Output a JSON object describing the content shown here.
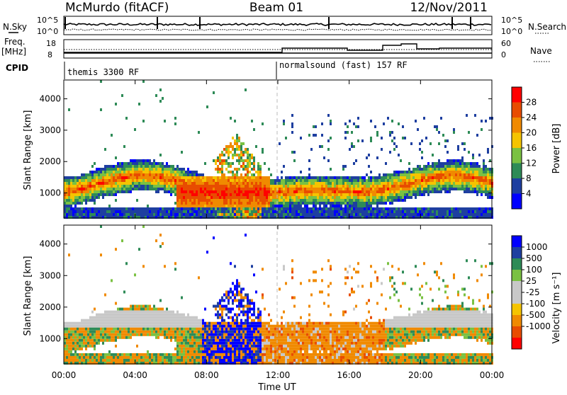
{
  "header": {
    "station": "McMurdo (fitACF)",
    "beam": "Beam 01",
    "date": "12/Nov/2011"
  },
  "strips": {
    "nsky_label": "N.Sky",
    "nsky_ticks": [
      "10^5",
      "10^0"
    ],
    "nsearch_label": "N.Search",
    "nsearch_ticks": [
      "10^5",
      "10^0"
    ],
    "freq_label": "Freq.",
    "freq_unit": "[MHz]",
    "freq_ticks": [
      "18",
      "8"
    ],
    "nave_label": "Nave",
    "nave_ticks": [
      "60",
      "0"
    ],
    "cpid_label": "CPID",
    "cpid_programs": [
      "themis 3300 RF",
      "normalsound (fast) 157 RF"
    ]
  },
  "colors": {
    "power_scale": [
      "#0000ff",
      "#1e3fa0",
      "#2e8b57",
      "#7ac142",
      "#f5c400",
      "#f08a00",
      "#e84c00",
      "#ff0000"
    ],
    "velocity_scale": [
      "#ff0000",
      "#e84c00",
      "#f08a00",
      "#f5c400",
      "#c8c8c8",
      "#c8c8c8",
      "#7ac142",
      "#2e8b57",
      "#1e3fa0",
      "#0000ff"
    ],
    "ground_scatter": "#bebebe"
  },
  "chart_data": [
    {
      "type": "heatmap",
      "name": "power",
      "ylabel": "Slant Range [km]",
      "xlabel": "",
      "ylim": [
        200,
        4600
      ],
      "yticks": [
        "1000",
        "2000",
        "3000",
        "4000"
      ],
      "colorbar_label": "Power [dB]",
      "colorbar_range": [
        0,
        32
      ],
      "colorbar_ticks": [
        "4",
        "8",
        "12",
        "16",
        "20",
        "24",
        "28"
      ],
      "grid": "off"
    },
    {
      "type": "heatmap",
      "name": "velocity",
      "ylabel": "Slant Range [km]",
      "xlabel": "Time UT",
      "ylim": [
        200,
        4600
      ],
      "yticks": [
        "1000",
        "2000",
        "3000",
        "4000"
      ],
      "xticks": [
        "00:00",
        "04:00",
        "08:00",
        "12:00",
        "16:00",
        "20:00",
        "00:00"
      ],
      "colorbar_label": "Velocity [m s⁻¹]",
      "colorbar_ticks": [
        "1000",
        "500",
        "100",
        "25",
        "-25",
        "-100",
        "-500",
        "-1000"
      ],
      "grid": "off"
    }
  ]
}
